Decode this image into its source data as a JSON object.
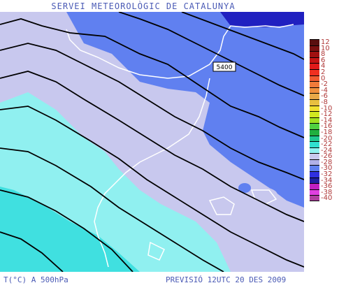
{
  "header": {
    "title": "SERVEI METEOROLÒGIC DE CATALUNYA"
  },
  "map": {
    "contour_label": "5400"
  },
  "legend": {
    "labels": [
      "12",
      "10",
      "8",
      "6",
      "4",
      "2",
      "0",
      "-2",
      "-4",
      "-6",
      "-8",
      "-10",
      "-12",
      "-14",
      "-16",
      "-18",
      "-20",
      "-22",
      "-24",
      "-26",
      "-28",
      "-30",
      "-32",
      "-34",
      "-36",
      "-38",
      "-40"
    ],
    "colors": [
      "#5a0f0f",
      "#7a1010",
      "#a01010",
      "#c51414",
      "#e01a1a",
      "#f03020",
      "#f05a30",
      "#f07a3a",
      "#f0903e",
      "#e8a848",
      "#e8c040",
      "#f0e030",
      "#d0e820",
      "#a0e020",
      "#50d040",
      "#20b040",
      "#20c890",
      "#30e0d0",
      "#90f0f0",
      "#c8c8ee",
      "#b0b0e8",
      "#6080f0",
      "#3030e0",
      "#2020a0",
      "#c020c0",
      "#e040e0",
      "#b040a0"
    ]
  },
  "footer": {
    "left": "T(°C) A 500hPa",
    "right": "PREVISIÓ 12UTC 20 DES 2009"
  },
  "colors": {
    "sea_cyan": "#b0f0f0",
    "sea_cyan_light": "#90f0f0",
    "band_cyan": "#40e0e0",
    "lavender": "#c8c8ee",
    "blue": "#6080f0",
    "dark_blue": "#2020c0"
  }
}
